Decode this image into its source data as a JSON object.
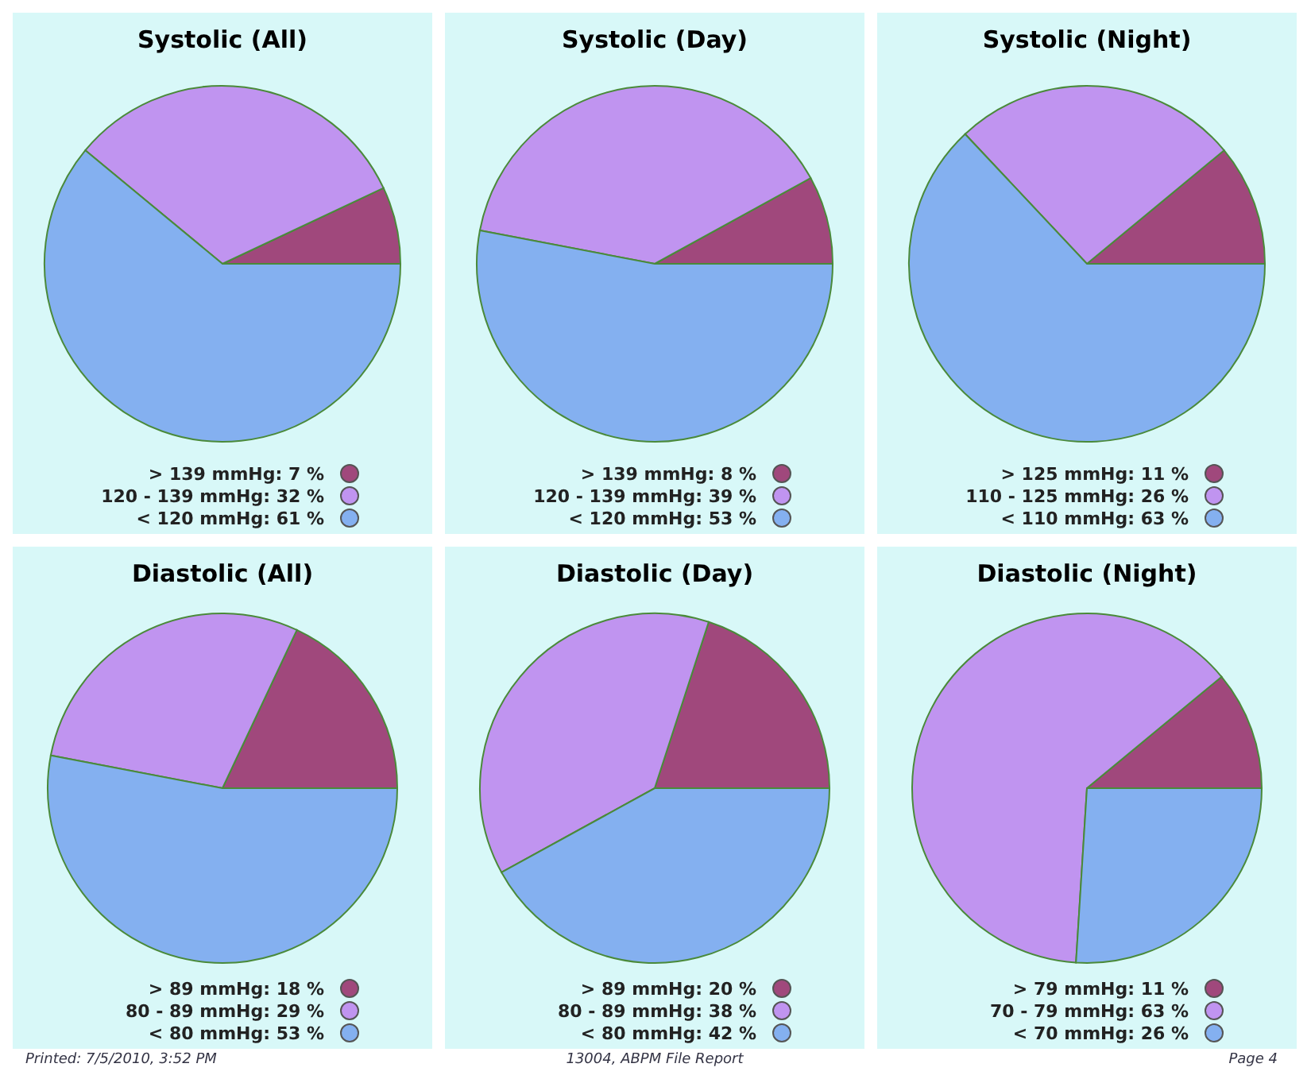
{
  "chart_data": [
    {
      "type": "pie",
      "title": "Systolic (All)",
      "categories": [
        "> 139 mmHg",
        "120 - 139 mmHg",
        "< 120 mmHg"
      ],
      "values": [
        7,
        32,
        61
      ],
      "value_labels": [
        "7 %",
        "32 %",
        "61 %"
      ],
      "colors": [
        "#a0487c",
        "#c094f0",
        "#84b0f0"
      ],
      "legend": "bottom"
    },
    {
      "type": "pie",
      "title": "Systolic (Day)",
      "categories": [
        "> 139 mmHg",
        "120 - 139 mmHg",
        "< 120 mmHg"
      ],
      "values": [
        8,
        39,
        53
      ],
      "value_labels": [
        "8 %",
        "39 %",
        "53 %"
      ],
      "colors": [
        "#a0487c",
        "#c094f0",
        "#84b0f0"
      ],
      "legend": "bottom"
    },
    {
      "type": "pie",
      "title": "Systolic (Night)",
      "categories": [
        "> 125 mmHg",
        "110 - 125 mmHg",
        "< 110 mmHg"
      ],
      "values": [
        11,
        26,
        63
      ],
      "value_labels": [
        "11 %",
        "26 %",
        "63 %"
      ],
      "colors": [
        "#a0487c",
        "#c094f0",
        "#84b0f0"
      ],
      "legend": "bottom"
    },
    {
      "type": "pie",
      "title": "Diastolic (All)",
      "categories": [
        "> 89 mmHg",
        "80 - 89 mmHg",
        "< 80 mmHg"
      ],
      "values": [
        18,
        29,
        53
      ],
      "value_labels": [
        "18 %",
        "29 %",
        "53 %"
      ],
      "colors": [
        "#a0487c",
        "#c094f0",
        "#84b0f0"
      ],
      "legend": "bottom",
      "annotations": [
        "Printed: 7/5/2010, 3:52 PM"
      ]
    },
    {
      "type": "pie",
      "title": "Diastolic (Day)",
      "categories": [
        "> 89 mmHg",
        "80 - 89 mmHg",
        "< 80 mmHg"
      ],
      "values": [
        20,
        38,
        42
      ],
      "value_labels": [
        "20 %",
        "38 %",
        "42 %"
      ],
      "colors": [
        "#a0487c",
        "#c094f0",
        "#84b0f0"
      ],
      "legend": "bottom",
      "annotations": [
        "13004, ABPM File Report"
      ]
    },
    {
      "type": "pie",
      "title": "Diastolic (Night)",
      "categories": [
        "> 79 mmHg",
        "70 - 79 mmHg",
        "< 70 mmHg"
      ],
      "values": [
        11,
        63,
        26
      ],
      "value_labels": [
        "11 %",
        "63 %",
        "26 %"
      ],
      "colors": [
        "#a0487c",
        "#c094f0",
        "#84b0f0"
      ],
      "legend": "bottom",
      "annotations": [
        "Page 4"
      ]
    }
  ]
}
